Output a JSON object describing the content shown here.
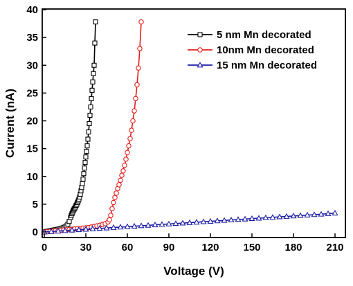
{
  "chart_data": {
    "type": "line",
    "title": "",
    "xlabel": "Voltage (V)",
    "ylabel": "Current (nA)",
    "xlim": [
      0,
      220
    ],
    "ylim": [
      -1,
      40
    ],
    "x_ticks": [
      "0",
      "30",
      "60",
      "90",
      "120",
      "150",
      "180",
      "210"
    ],
    "y_ticks": [
      "0",
      "5",
      "10",
      "15",
      "20",
      "25",
      "30",
      "35",
      "40"
    ],
    "grid": false,
    "legend_position": "top-right",
    "series": [
      {
        "name": "5 nm Mn decorated",
        "color": "#000000",
        "marker": "square",
        "x": [
          0,
          1,
          2,
          3,
          4,
          5,
          6,
          7,
          8,
          9,
          10,
          11,
          12,
          13,
          14,
          15,
          16,
          17,
          18,
          19,
          19.5,
          20,
          20.5,
          21,
          21.5,
          22,
          22.5,
          23,
          23.5,
          24,
          24.5,
          25,
          25.5,
          26,
          26.5,
          27,
          27.5,
          28,
          28.5,
          29,
          29.5,
          30,
          30.5,
          31,
          31.5,
          32,
          32.5,
          33,
          33.5,
          34,
          34.5,
          35,
          35.5,
          36,
          36.5,
          37
        ],
        "y": [
          0,
          0.05,
          0.1,
          0.15,
          0.2,
          0.25,
          0.3,
          0.35,
          0.4,
          0.45,
          0.5,
          0.55,
          0.6,
          0.7,
          0.8,
          0.9,
          1.1,
          1.4,
          1.9,
          2.6,
          3.0,
          3.3,
          3.6,
          3.9,
          4.1,
          4.3,
          4.5,
          4.8,
          5.0,
          5.3,
          5.6,
          5.9,
          6.3,
          6.8,
          7.4,
          8.0,
          8.7,
          9.5,
          10.5,
          11.5,
          12.5,
          13.5,
          14.5,
          15.5,
          16.7,
          18.0,
          19.5,
          21.0,
          22.5,
          24.0,
          25.5,
          27.0,
          28.5,
          30.0,
          34.0,
          37.8
        ]
      },
      {
        "name": "10nm Mn decorated",
        "color": "#e0201b",
        "marker": "circle",
        "x": [
          0,
          2,
          4,
          6,
          8,
          10,
          12,
          14,
          16,
          18,
          20,
          22,
          24,
          26,
          28,
          30,
          32,
          34,
          36,
          38,
          40,
          42,
          44,
          46,
          47,
          48,
          49,
          50,
          51,
          52,
          53,
          54,
          55,
          56,
          57,
          58,
          59,
          60,
          61,
          62,
          63,
          64,
          65,
          66,
          67,
          68,
          69,
          70
        ],
        "y": [
          0,
          0.05,
          0.1,
          0.15,
          0.2,
          0.25,
          0.3,
          0.35,
          0.4,
          0.45,
          0.5,
          0.55,
          0.6,
          0.65,
          0.7,
          0.75,
          0.8,
          0.9,
          1.0,
          1.1,
          1.2,
          1.35,
          1.5,
          1.8,
          2.2,
          3.0,
          4.2,
          5.3,
          6.2,
          7.0,
          7.8,
          8.5,
          9.3,
          10.2,
          11.0,
          12.0,
          13.1,
          14.3,
          15.5,
          16.8,
          18.3,
          20.0,
          21.8,
          24.0,
          26.5,
          29.5,
          33.0,
          37.8
        ]
      },
      {
        "name": "15 nm Mn decorated",
        "color": "#1c1ca6",
        "marker": "triangle",
        "x": [
          0,
          5,
          10,
          15,
          20,
          25,
          30,
          35,
          40,
          45,
          50,
          55,
          60,
          65,
          70,
          75,
          80,
          85,
          90,
          95,
          100,
          105,
          110,
          115,
          120,
          125,
          130,
          135,
          140,
          145,
          150,
          155,
          160,
          165,
          170,
          175,
          180,
          185,
          190,
          195,
          200,
          205,
          210
        ],
        "y": [
          0,
          0.08,
          0.16,
          0.24,
          0.32,
          0.4,
          0.48,
          0.56,
          0.64,
          0.72,
          0.8,
          0.88,
          0.96,
          1.04,
          1.12,
          1.2,
          1.28,
          1.36,
          1.44,
          1.52,
          1.6,
          1.68,
          1.76,
          1.84,
          1.92,
          2.0,
          2.08,
          2.16,
          2.24,
          2.32,
          2.4,
          2.48,
          2.56,
          2.64,
          2.72,
          2.8,
          2.88,
          2.96,
          3.04,
          3.12,
          3.2,
          3.3,
          3.4
        ]
      }
    ]
  }
}
